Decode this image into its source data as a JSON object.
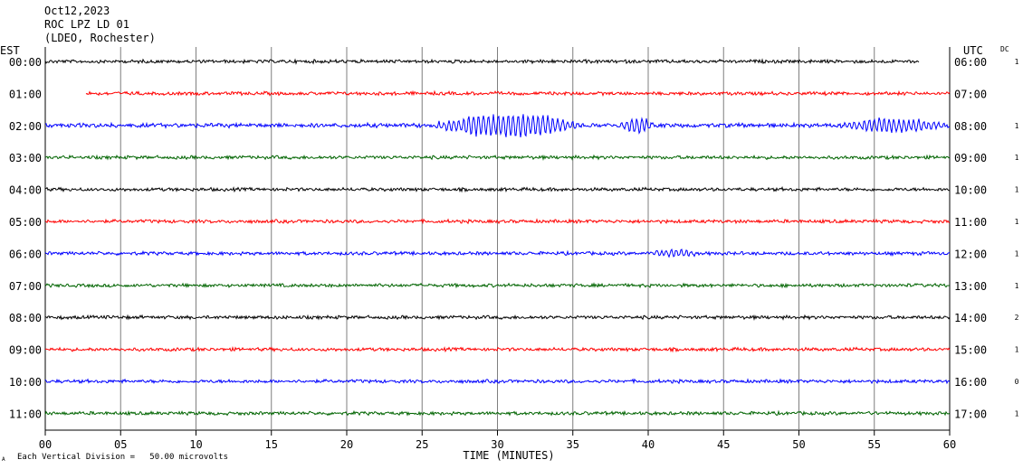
{
  "header": {
    "date": "Oct12,2023",
    "station": "ROC LPZ LD 01",
    "network": "(LDEO, Rochester)"
  },
  "left_axis_label": "EST",
  "right_axis_label": "UTC",
  "dc_label": "DC",
  "footer": {
    "scale_note": "Each Vertical Division =   50.00 microvolts",
    "mark": "A"
  },
  "colors": {
    "black": "#000000",
    "red": "#ff0000",
    "blue": "#0000ff",
    "green": "#006400",
    "grid": "#7f7f7f"
  },
  "chart_data": {
    "type": "line",
    "title": "",
    "xlabel": "TIME (MINUTES)",
    "ylabel": "",
    "xlim": [
      0,
      60
    ],
    "xticks": [
      "00",
      "05",
      "10",
      "15",
      "20",
      "25",
      "30",
      "35",
      "40",
      "45",
      "50",
      "55",
      "60"
    ],
    "grid": true,
    "traces": [
      {
        "est": "00:00",
        "utc": "06:00",
        "dc": "1",
        "color": "black",
        "start_min": 0,
        "end_min": 58,
        "amplitude": "low"
      },
      {
        "est": "01:00",
        "utc": "07:00",
        "dc": "",
        "color": "red",
        "start_min": 2.7,
        "end_min": 60,
        "amplitude": "low"
      },
      {
        "est": "02:00",
        "utc": "08:00",
        "dc": "1",
        "color": "blue",
        "start_min": 0,
        "end_min": 60,
        "amplitude": "high",
        "events": [
          [
            25.5,
            36,
            12
          ],
          [
            38,
            40.5,
            8
          ],
          [
            52.5,
            60,
            7
          ]
        ]
      },
      {
        "est": "03:00",
        "utc": "09:00",
        "dc": "1",
        "color": "green",
        "start_min": 0,
        "end_min": 60,
        "amplitude": "low"
      },
      {
        "est": "04:00",
        "utc": "10:00",
        "dc": "1",
        "color": "black",
        "start_min": 0,
        "end_min": 60,
        "amplitude": "low"
      },
      {
        "est": "05:00",
        "utc": "11:00",
        "dc": "1",
        "color": "red",
        "start_min": 0,
        "end_min": 60,
        "amplitude": "low"
      },
      {
        "est": "06:00",
        "utc": "12:00",
        "dc": "1",
        "color": "blue",
        "start_min": 0,
        "end_min": 60,
        "amplitude": "low",
        "events": [
          [
            40,
            43.5,
            4
          ]
        ]
      },
      {
        "est": "07:00",
        "utc": "13:00",
        "dc": "1",
        "color": "green",
        "start_min": 0,
        "end_min": 60,
        "amplitude": "low"
      },
      {
        "est": "08:00",
        "utc": "14:00",
        "dc": "2",
        "color": "black",
        "start_min": 0,
        "end_min": 60,
        "amplitude": "low"
      },
      {
        "est": "09:00",
        "utc": "15:00",
        "dc": "1",
        "color": "red",
        "start_min": 0,
        "end_min": 60,
        "amplitude": "low"
      },
      {
        "est": "10:00",
        "utc": "16:00",
        "dc": "0",
        "color": "blue",
        "start_min": 0,
        "end_min": 60,
        "amplitude": "low"
      },
      {
        "est": "11:00",
        "utc": "17:00",
        "dc": "1",
        "color": "green",
        "start_min": 0,
        "end_min": 60,
        "amplitude": "low"
      }
    ]
  }
}
